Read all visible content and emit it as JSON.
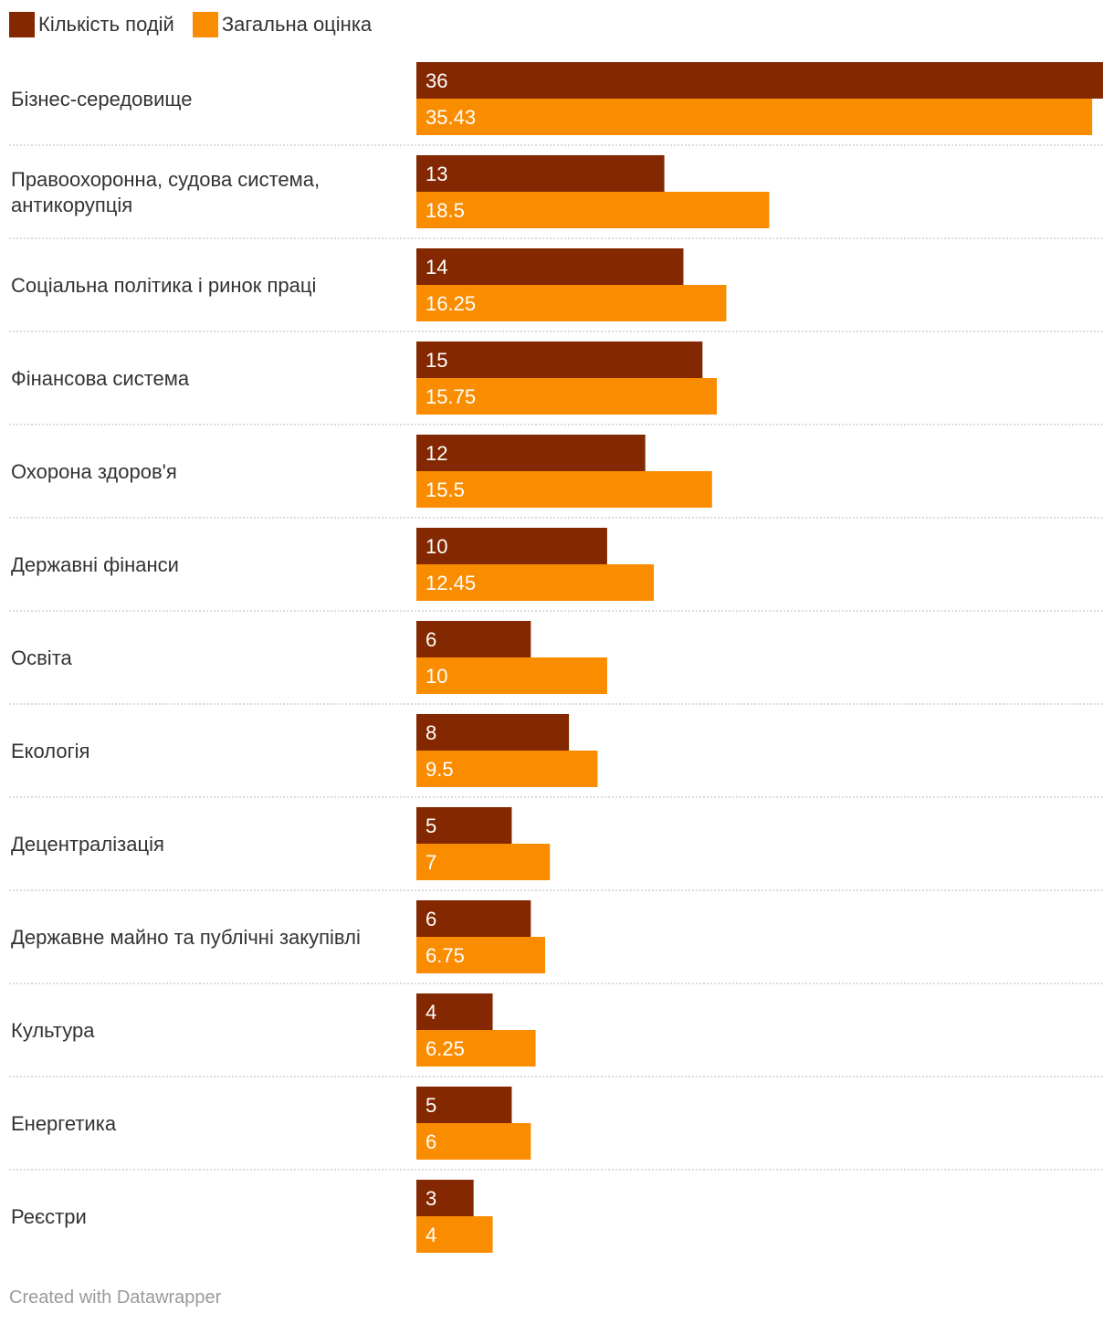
{
  "chart_data": {
    "type": "bar",
    "orientation": "horizontal",
    "categories": [
      "Бізнес-середовище",
      "Правоохоронна, судова система, антикорупція",
      "Соціальна політика і ринок праці",
      "Фінансова система",
      "Охорона здоров'я",
      "Державні фінанси",
      "Освіта",
      "Екологія",
      "Децентралізація",
      "Державне майно та публічні закупівлі",
      "Культура",
      "Енергетика",
      "Реєстри"
    ],
    "series": [
      {
        "name": "Кількість подій",
        "color": "#832800",
        "values": [
          36,
          13,
          14,
          15,
          12,
          10,
          6,
          8,
          5,
          6,
          4,
          5,
          3
        ],
        "labels": [
          "36",
          "13",
          "14",
          "15",
          "12",
          "10",
          "6",
          "8",
          "5",
          "6",
          "4",
          "5",
          "3"
        ]
      },
      {
        "name": "Загальна оцінка",
        "color": "#fa8c00",
        "values": [
          35.43,
          18.5,
          16.25,
          15.75,
          15.5,
          12.45,
          10,
          9.5,
          7,
          6.75,
          6.25,
          6,
          4
        ],
        "labels": [
          "35.43",
          "18.5",
          "16.25",
          "15.75",
          "15.5",
          "12.45",
          "10",
          "9.5",
          "7",
          "6.75",
          "6.25",
          "6",
          "4"
        ]
      }
    ],
    "xlim": [
      0,
      36
    ],
    "grid": false,
    "legend_position": "top-left"
  },
  "footer": {
    "credit": "Created with Datawrapper"
  }
}
